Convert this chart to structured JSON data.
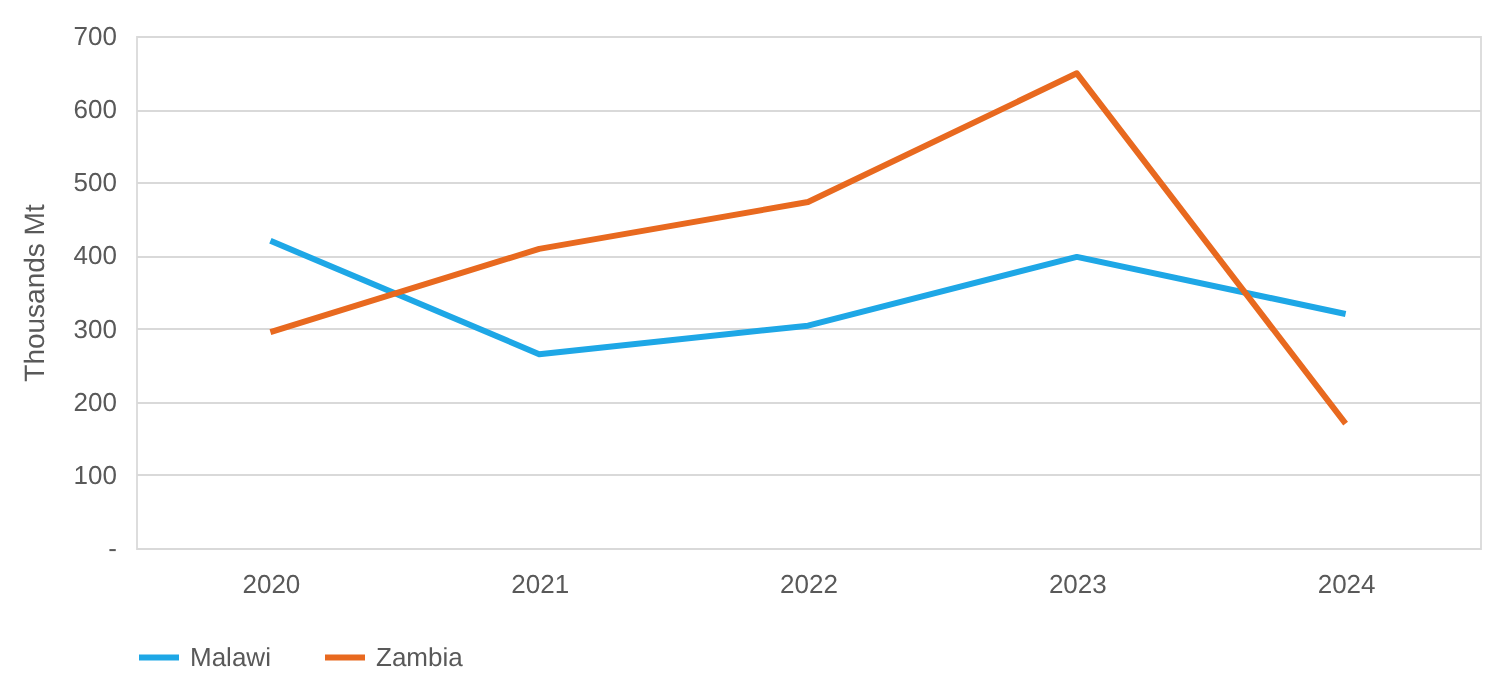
{
  "chart_data": {
    "type": "line",
    "ylabel": "Thousands Mt",
    "categories": [
      "2020",
      "2021",
      "2022",
      "2023",
      "2024"
    ],
    "series": [
      {
        "name": "Malawi",
        "color": "#1ea7e6",
        "values": [
          420,
          265,
          304,
          398,
          320
        ]
      },
      {
        "name": "Zambia",
        "color": "#e8691f",
        "values": [
          295,
          409,
          473,
          649,
          170
        ]
      }
    ],
    "ylim": [
      0,
      700
    ],
    "yticks": [
      {
        "value": 0,
        "label": "-"
      },
      100,
      200,
      300,
      400,
      500,
      600,
      700
    ],
    "grid": "y",
    "legend": "bottom",
    "marker": "none",
    "line_style": "solid"
  }
}
